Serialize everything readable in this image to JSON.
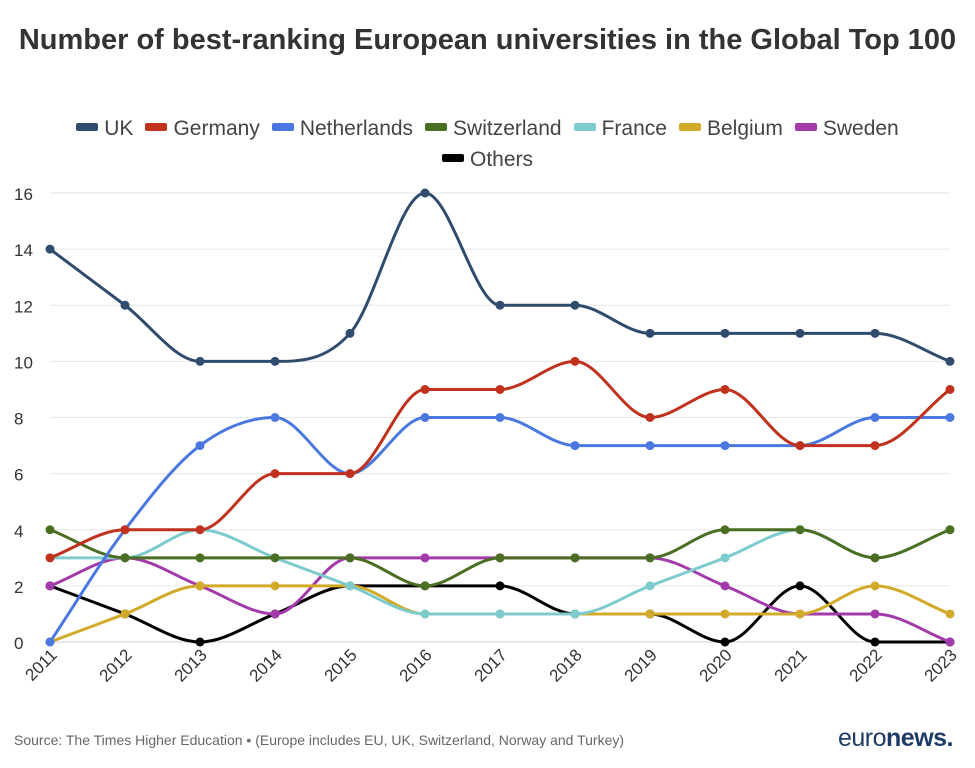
{
  "chart_data": {
    "type": "line",
    "title": "Number of best-ranking European universities in the Global Top 100",
    "x": [
      "2011",
      "2012",
      "2013",
      "2014",
      "2015",
      "2016",
      "2017",
      "2018",
      "2019",
      "2020",
      "2021",
      "2022",
      "2023"
    ],
    "ylim": [
      0,
      16
    ],
    "yticks": [
      0,
      2,
      4,
      6,
      8,
      10,
      12,
      14,
      16
    ],
    "grid": true,
    "legend_position": "top",
    "series": [
      {
        "name": "UK",
        "color": "#2f4b6e",
        "values": [
          14,
          12,
          10,
          10,
          11,
          16,
          12,
          12,
          11,
          11,
          11,
          11,
          10
        ]
      },
      {
        "name": "Germany",
        "color": "#c0321e",
        "values": [
          3,
          4,
          4,
          6,
          6,
          9,
          9,
          10,
          8,
          9,
          7,
          7,
          9
        ]
      },
      {
        "name": "Netherlands",
        "color": "#4a78e0",
        "values": [
          0,
          4,
          7,
          8,
          6,
          8,
          8,
          7,
          7,
          7,
          7,
          8,
          8
        ]
      },
      {
        "name": "Switzerland",
        "color": "#4a6e22",
        "values": [
          4,
          3,
          3,
          3,
          3,
          2,
          3,
          3,
          3,
          4,
          4,
          3,
          4
        ]
      },
      {
        "name": "France",
        "color": "#7dcbcc",
        "values": [
          3,
          3,
          4,
          3,
          2,
          1,
          1,
          1,
          2,
          3,
          4,
          3,
          4
        ]
      },
      {
        "name": "Belgium",
        "color": "#d2aa2a",
        "values": [
          0,
          1,
          2,
          2,
          2,
          1,
          1,
          1,
          1,
          1,
          1,
          2,
          1
        ]
      },
      {
        "name": "Sweden",
        "color": "#a23aaa",
        "values": [
          2,
          3,
          2,
          1,
          3,
          3,
          3,
          3,
          3,
          2,
          1,
          1,
          0
        ]
      },
      {
        "name": "Others",
        "color": "#000000",
        "values": [
          2,
          1,
          0,
          1,
          2,
          2,
          2,
          1,
          1,
          0,
          2,
          0,
          0
        ]
      }
    ]
  },
  "footer": {
    "source": "Source: The Times Higher Education • (Europe includes EU, UK, Switzerland, Norway and Turkey)",
    "logo_light": "euro",
    "logo_bold": "news."
  }
}
